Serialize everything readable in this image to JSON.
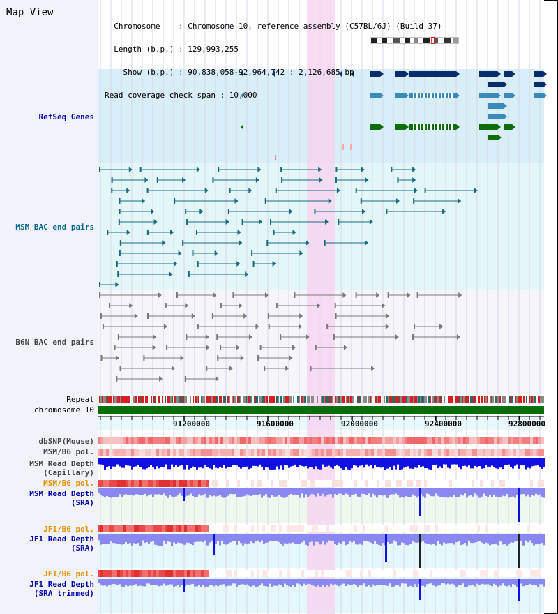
{
  "header": {
    "map_title": "Map View",
    "info_lines": [
      "  Chromosome    : Chromosome 10, reference assembly (C57BL/6J) (Build 37)",
      "  Length (b.p.) : 129,993,255",
      "    Show (b.p.) : 90,838,058-92,964,742 : 2,126,685 bp",
      "Read coverage check span : 10,000"
    ]
  },
  "tracks": {
    "refseq": "RefSeq Genes",
    "msm_bac": "MSM BAC end pairs",
    "b6n_bac": "B6N BAC end pairs",
    "repeat": "Repeat",
    "chromosome": "chromosome 10",
    "dbsnp": "dbSNP(Mouse)",
    "msm_b6_pol_1": "MSM/B6 pol.",
    "msm_read_depth_cap_1": "MSM Read Depth",
    "msm_read_depth_cap_2": "(Capillary)",
    "msm_b6_pol_2": "MSM/B6 pol.",
    "msm_read_depth_sra_1": "MSM Read Depth",
    "msm_read_depth_sra_2": "(SRA)",
    "jf1_b6_pol_1": "JF1/B6 pol.",
    "jf1_read_depth_sra_1": "JF1 Read Depth",
    "jf1_read_depth_sra_2": "(SRA)",
    "jf1_b6_pol_2": "JF1/B6 pol.",
    "jf1_read_depth_trim_1": "JF1 Read Depth",
    "jf1_read_depth_trim_2": "(SRA trimmed)"
  },
  "axis": {
    "tick_labels": [
      "91200000",
      "91600000",
      "92000000",
      "92400000",
      "92800000"
    ]
  },
  "colors": {
    "refseq_bg": "#d8eef8",
    "msm_bg": "#e4f7f8",
    "b6n_bg": "#f6f6fa",
    "highlight": "#f6d6f0",
    "gene_navy": "#0a2c6a",
    "gene_light": "#3a8ab8",
    "gene_green": "#0b6e0b",
    "chromosome_bar": "#0a6e0a",
    "depth_blue": "#1010e0",
    "depth_light": "#8888f0",
    "pol_red": "#e84848"
  }
}
